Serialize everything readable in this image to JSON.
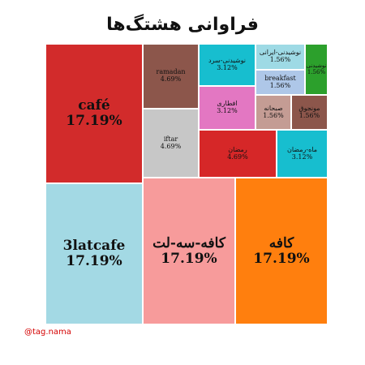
{
  "title": "فراوانی هشتگ‌ها",
  "footer": "@tag.nama",
  "chart_data": {
    "type": "treemap",
    "title": "فراوانی هشتگ‌ها",
    "items": [
      {
        "label": "café",
        "value": "17.19%",
        "color": "#d22b2b"
      },
      {
        "label": "3latcafe",
        "value": "17.19%",
        "color": "#a3d9e4"
      },
      {
        "label": "کافه-سه-لت",
        "value": "17.19%",
        "color": "#f79b9b"
      },
      {
        "label": "کافه",
        "value": "17.19%",
        "color": "#ff7f0e"
      },
      {
        "label": "ramadan",
        "value": "4.69%",
        "color": "#8c564b"
      },
      {
        "label": "iftar",
        "value": "4.69%",
        "color": "#c7c7c7"
      },
      {
        "label": "رمضان",
        "value": "4.69%",
        "color": "#d62728"
      },
      {
        "label": "نوشیدنی-سرد",
        "value": "3.12%",
        "color": "#17becf"
      },
      {
        "label": "افطاری",
        "value": "3.12%",
        "color": "#e377c2"
      },
      {
        "label": "ماه-رمضان",
        "value": "3.12%",
        "color": "#17becf"
      },
      {
        "label": "نوشیدنی-ایرانی",
        "value": "1.56%",
        "color": "#9edae5"
      },
      {
        "label": "نوشیدنی",
        "value": "1.56%",
        "color": "#2ca02c"
      },
      {
        "label": "breakfast",
        "value": "1.56%",
        "color": "#aec7e8"
      },
      {
        "label": "صبحانه",
        "value": "1.56%",
        "color": "#c49c94"
      },
      {
        "label": "مونجوق",
        "value": "1.56%",
        "color": "#8c564b"
      }
    ]
  }
}
